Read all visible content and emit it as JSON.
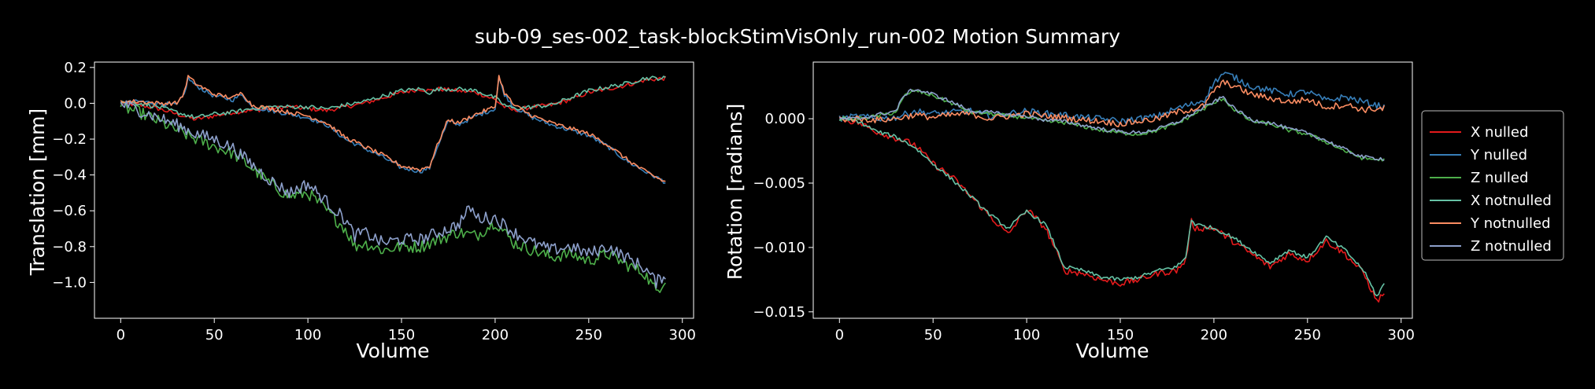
{
  "figure": {
    "title": "sub-09_ses-002_task-blockStimVisOnly_run-002 Motion Summary",
    "background": "#000000",
    "foreground": "#ffffff"
  },
  "legend": {
    "placement": "right",
    "entries": [
      {
        "label": "X nulled",
        "color": "#e41a1c"
      },
      {
        "label": "Y nulled",
        "color": "#377eb8"
      },
      {
        "label": "Z nulled",
        "color": "#4daf4a"
      },
      {
        "label": "X notnulled",
        "color": "#66c2a5"
      },
      {
        "label": "Y notnulled",
        "color": "#fc8d62"
      },
      {
        "label": "Z notnulled",
        "color": "#8da0cb"
      }
    ]
  },
  "chart_data": [
    {
      "type": "line",
      "title": "",
      "xlabel": "Volume",
      "ylabel": "Translation [mm]",
      "xlim": [
        -14,
        306
      ],
      "ylim": [
        -1.2,
        0.23
      ],
      "xticks": [
        0,
        50,
        100,
        150,
        200,
        250,
        300
      ],
      "yticks": [
        0.2,
        0.0,
        -0.2,
        -0.4,
        -0.6,
        -0.8,
        -1.0
      ],
      "ytick_labels": [
        "0.2",
        "0.0",
        "−0.2",
        "−0.4",
        "−0.6",
        "−0.8",
        "−1.0"
      ],
      "grid": false,
      "n_volumes": 292,
      "noise": [
        0.012,
        0.012,
        0.035,
        0.012,
        0.012,
        0.035
      ],
      "series": [
        {
          "name": "X nulled",
          "color": "#e41a1c",
          "x": [
            0,
            10,
            20,
            30,
            40,
            50,
            60,
            70,
            80,
            90,
            100,
            110,
            120,
            130,
            140,
            150,
            160,
            165,
            170,
            180,
            190,
            200,
            205,
            210,
            220,
            230,
            240,
            250,
            260,
            270,
            280,
            291
          ],
          "values": [
            0,
            -0.01,
            -0.03,
            -0.06,
            -0.09,
            -0.07,
            -0.05,
            -0.04,
            -0.03,
            -0.02,
            -0.03,
            -0.04,
            -0.02,
            0.0,
            0.03,
            0.06,
            0.08,
            0.07,
            0.08,
            0.07,
            0.06,
            0.02,
            -0.02,
            -0.04,
            -0.02,
            -0.01,
            0.02,
            0.06,
            0.08,
            0.1,
            0.13,
            0.14
          ]
        },
        {
          "name": "Y nulled",
          "color": "#377eb8",
          "x": [
            0,
            10,
            20,
            30,
            34,
            36,
            40,
            50,
            60,
            65,
            70,
            80,
            90,
            100,
            110,
            120,
            130,
            140,
            150,
            160,
            165,
            170,
            175,
            180,
            190,
            200,
            202,
            205,
            210,
            220,
            230,
            240,
            250,
            260,
            270,
            280,
            291
          ],
          "values": [
            0,
            0.01,
            0.0,
            -0.01,
            0.05,
            0.14,
            0.1,
            0.04,
            0.02,
            0.05,
            -0.02,
            -0.04,
            -0.06,
            -0.08,
            -0.12,
            -0.2,
            -0.25,
            -0.3,
            -0.36,
            -0.38,
            -0.36,
            -0.22,
            -0.1,
            -0.12,
            -0.07,
            -0.03,
            0.14,
            0.05,
            -0.02,
            -0.08,
            -0.12,
            -0.15,
            -0.18,
            -0.24,
            -0.32,
            -0.38,
            -0.44
          ]
        },
        {
          "name": "Z nulled",
          "color": "#4daf4a",
          "x": [
            0,
            10,
            20,
            30,
            40,
            50,
            60,
            70,
            80,
            90,
            100,
            110,
            120,
            125,
            130,
            140,
            150,
            160,
            170,
            180,
            190,
            200,
            210,
            220,
            230,
            240,
            250,
            260,
            270,
            280,
            286,
            291
          ],
          "values": [
            -0.02,
            -0.05,
            -0.1,
            -0.15,
            -0.2,
            -0.24,
            -0.28,
            -0.36,
            -0.45,
            -0.52,
            -0.5,
            -0.6,
            -0.7,
            -0.8,
            -0.78,
            -0.82,
            -0.8,
            -0.8,
            -0.76,
            -0.72,
            -0.74,
            -0.66,
            -0.78,
            -0.82,
            -0.86,
            -0.84,
            -0.88,
            -0.84,
            -0.9,
            -0.95,
            -1.05,
            -0.98
          ]
        },
        {
          "name": "X notnulled",
          "color": "#66c2a5",
          "x": [
            0,
            10,
            20,
            30,
            40,
            50,
            60,
            70,
            80,
            90,
            100,
            110,
            120,
            130,
            140,
            150,
            160,
            165,
            170,
            180,
            190,
            200,
            205,
            210,
            220,
            230,
            240,
            250,
            260,
            270,
            280,
            291
          ],
          "values": [
            0.01,
            0.0,
            -0.02,
            -0.05,
            -0.08,
            -0.06,
            -0.05,
            -0.03,
            -0.02,
            -0.02,
            -0.02,
            -0.03,
            -0.01,
            0.01,
            0.04,
            0.07,
            0.08,
            0.06,
            0.08,
            0.08,
            0.07,
            0.03,
            -0.01,
            -0.03,
            -0.02,
            -0.01,
            0.03,
            0.07,
            0.09,
            0.11,
            0.14,
            0.14
          ]
        },
        {
          "name": "Y notnulled",
          "color": "#fc8d62",
          "x": [
            0,
            10,
            20,
            30,
            34,
            36,
            40,
            50,
            60,
            65,
            70,
            80,
            90,
            100,
            110,
            120,
            130,
            140,
            150,
            160,
            165,
            170,
            175,
            180,
            190,
            200,
            202,
            205,
            210,
            220,
            230,
            240,
            250,
            260,
            270,
            280,
            291
          ],
          "values": [
            0.01,
            0.01,
            0.0,
            0.0,
            0.06,
            0.15,
            0.11,
            0.05,
            0.03,
            0.06,
            -0.01,
            -0.03,
            -0.05,
            -0.07,
            -0.11,
            -0.19,
            -0.24,
            -0.29,
            -0.35,
            -0.37,
            -0.35,
            -0.21,
            -0.09,
            -0.11,
            -0.06,
            -0.02,
            0.15,
            0.06,
            -0.01,
            -0.07,
            -0.11,
            -0.14,
            -0.17,
            -0.23,
            -0.31,
            -0.38,
            -0.44
          ]
        },
        {
          "name": "Z notnulled",
          "color": "#8da0cb",
          "x": [
            0,
            10,
            20,
            30,
            40,
            50,
            60,
            70,
            80,
            90,
            100,
            110,
            120,
            125,
            130,
            140,
            150,
            160,
            170,
            180,
            187,
            190,
            200,
            210,
            220,
            230,
            240,
            250,
            260,
            270,
            280,
            286,
            291
          ],
          "values": [
            0.0,
            -0.04,
            -0.08,
            -0.12,
            -0.17,
            -0.2,
            -0.25,
            -0.34,
            -0.43,
            -0.5,
            -0.45,
            -0.55,
            -0.65,
            -0.74,
            -0.72,
            -0.78,
            -0.76,
            -0.76,
            -0.72,
            -0.68,
            -0.58,
            -0.64,
            -0.64,
            -0.72,
            -0.78,
            -0.82,
            -0.8,
            -0.84,
            -0.8,
            -0.86,
            -0.92,
            -1.0,
            -0.95
          ]
        }
      ]
    },
    {
      "type": "line",
      "title": "",
      "xlabel": "Volume",
      "ylabel": "Rotation [radians]",
      "xlim": [
        -14,
        306
      ],
      "ylim": [
        -0.0155,
        0.0044
      ],
      "xticks": [
        0,
        50,
        100,
        150,
        200,
        250,
        300
      ],
      "yticks": [
        0.0,
        -0.005,
        -0.01,
        -0.015
      ],
      "ytick_labels": [
        "0.000",
        "−0.005",
        "−0.010",
        "−0.015"
      ],
      "grid": false,
      "n_volumes": 292,
      "noise": [
        0.00025,
        0.00025,
        0.00015,
        0.00015,
        0.00025,
        0.00015
      ],
      "series": [
        {
          "name": "X nulled",
          "color": "#e41a1c",
          "x": [
            0,
            10,
            20,
            30,
            40,
            50,
            60,
            70,
            80,
            90,
            100,
            110,
            115,
            120,
            130,
            140,
            150,
            160,
            170,
            180,
            185,
            188,
            190,
            200,
            210,
            220,
            230,
            240,
            250,
            260,
            270,
            280,
            287,
            291
          ],
          "values": [
            0.0,
            -0.0003,
            -0.001,
            -0.0015,
            -0.002,
            -0.0035,
            -0.0045,
            -0.006,
            -0.0075,
            -0.009,
            -0.007,
            -0.0085,
            -0.01,
            -0.0118,
            -0.012,
            -0.0125,
            -0.0128,
            -0.0125,
            -0.012,
            -0.0118,
            -0.011,
            -0.008,
            -0.0085,
            -0.0085,
            -0.0095,
            -0.0105,
            -0.0115,
            -0.0105,
            -0.011,
            -0.0095,
            -0.0105,
            -0.012,
            -0.0142,
            -0.0135
          ]
        },
        {
          "name": "Y nulled",
          "color": "#377eb8",
          "x": [
            0,
            10,
            20,
            30,
            40,
            50,
            60,
            70,
            80,
            90,
            100,
            110,
            120,
            130,
            140,
            150,
            160,
            170,
            180,
            190,
            195,
            200,
            205,
            210,
            220,
            230,
            240,
            250,
            260,
            270,
            280,
            291
          ],
          "values": [
            0.0,
            0.0002,
            0.0,
            0.0001,
            0.0006,
            0.0004,
            0.0005,
            0.0006,
            0.0002,
            0.0004,
            0.0006,
            0.0004,
            0.0003,
            0.0001,
            0.0,
            -0.0002,
            0.0,
            0.0002,
            0.0008,
            0.0012,
            0.0015,
            0.0028,
            0.0035,
            0.0033,
            0.0025,
            0.0022,
            0.0019,
            0.0021,
            0.0014,
            0.0017,
            0.0013,
            0.0009
          ]
        },
        {
          "name": "Z nulled",
          "color": "#4daf4a",
          "x": [
            0,
            10,
            20,
            30,
            35,
            40,
            50,
            60,
            70,
            80,
            90,
            100,
            110,
            120,
            130,
            140,
            150,
            160,
            170,
            180,
            190,
            200,
            205,
            210,
            220,
            230,
            240,
            250,
            260,
            270,
            280,
            291
          ],
          "values": [
            0.0,
            0.0,
            0.0002,
            0.0005,
            0.0018,
            0.0022,
            0.0018,
            0.0012,
            0.0005,
            0.0004,
            0.0002,
            0.0001,
            -0.0002,
            -0.0003,
            -0.0006,
            -0.0009,
            -0.0011,
            -0.0012,
            -0.0009,
            -0.0004,
            0.0004,
            0.0012,
            0.0016,
            0.0008,
            -0.0002,
            -0.0004,
            -0.0009,
            -0.0012,
            -0.0018,
            -0.0025,
            -0.0031,
            -0.0032
          ]
        },
        {
          "name": "X notnulled",
          "color": "#66c2a5",
          "x": [
            0,
            10,
            20,
            30,
            40,
            50,
            60,
            70,
            80,
            90,
            100,
            110,
            115,
            120,
            130,
            140,
            150,
            160,
            170,
            180,
            185,
            188,
            190,
            200,
            210,
            220,
            230,
            240,
            250,
            260,
            270,
            280,
            287,
            291
          ],
          "values": [
            0.0,
            -0.0002,
            -0.001,
            -0.0014,
            -0.0022,
            -0.0035,
            -0.0047,
            -0.006,
            -0.0074,
            -0.0085,
            -0.0072,
            -0.0082,
            -0.0098,
            -0.0115,
            -0.0118,
            -0.0123,
            -0.0125,
            -0.0123,
            -0.0118,
            -0.0115,
            -0.0108,
            -0.0078,
            -0.0082,
            -0.0085,
            -0.0092,
            -0.0102,
            -0.0112,
            -0.0102,
            -0.0108,
            -0.0092,
            -0.0102,
            -0.0118,
            -0.0138,
            -0.0128
          ]
        },
        {
          "name": "Y notnulled",
          "color": "#fc8d62",
          "x": [
            0,
            10,
            20,
            30,
            40,
            50,
            60,
            70,
            80,
            90,
            100,
            110,
            120,
            130,
            140,
            150,
            160,
            170,
            180,
            190,
            195,
            200,
            205,
            210,
            220,
            230,
            240,
            250,
            260,
            270,
            280,
            291
          ],
          "values": [
            0.0,
            0.0,
            -0.0001,
            0.0,
            0.0003,
            0.0001,
            0.0003,
            0.0004,
            0.0,
            0.0002,
            0.0004,
            0.0002,
            0.0001,
            -0.0001,
            -0.0002,
            -0.0004,
            -0.0002,
            0.0,
            0.0005,
            0.0008,
            0.001,
            0.0022,
            0.0028,
            0.0026,
            0.0019,
            0.0016,
            0.0013,
            0.0015,
            0.0009,
            0.0011,
            0.0007,
            0.0008
          ]
        },
        {
          "name": "Z notnulled",
          "color": "#8da0cb",
          "x": [
            0,
            10,
            20,
            30,
            35,
            40,
            50,
            60,
            70,
            80,
            90,
            100,
            110,
            120,
            130,
            140,
            150,
            160,
            170,
            180,
            190,
            200,
            205,
            210,
            220,
            230,
            240,
            250,
            260,
            270,
            280,
            291
          ],
          "values": [
            0.0,
            0.0,
            0.0003,
            0.0006,
            0.0019,
            0.0023,
            0.0019,
            0.0013,
            0.0006,
            0.0005,
            0.0003,
            0.0002,
            -0.0001,
            -0.0002,
            -0.0005,
            -0.0008,
            -0.001,
            -0.0011,
            -0.0008,
            -0.0003,
            0.0005,
            0.0013,
            0.0017,
            0.0009,
            -0.0001,
            -0.0003,
            -0.0008,
            -0.0011,
            -0.0017,
            -0.0024,
            -0.003,
            -0.0031
          ]
        }
      ]
    }
  ]
}
